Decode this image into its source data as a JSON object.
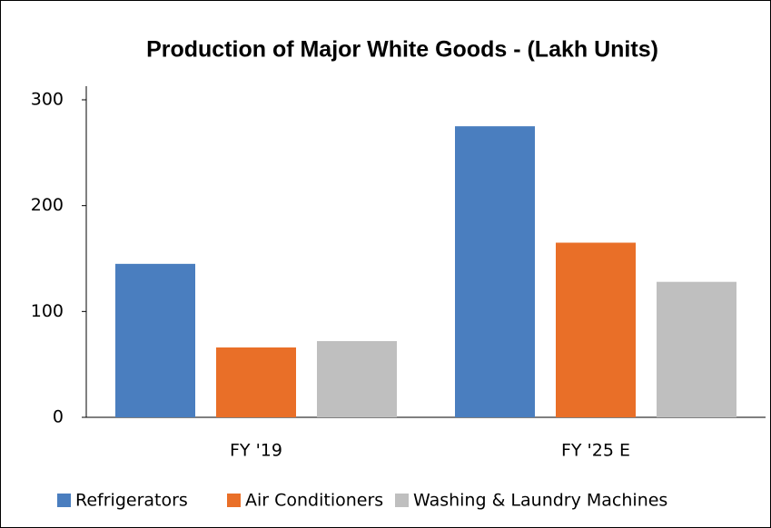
{
  "chart_data": {
    "type": "bar",
    "title": "Production of Major White Goods - (Lakh Units)",
    "categories": [
      "FY '19",
      "FY '25 E"
    ],
    "series": [
      {
        "name": "Refrigerators",
        "color": "#4a7ebf",
        "values": [
          145,
          275
        ]
      },
      {
        "name": "Air Conditioners",
        "color": "#e96f28",
        "values": [
          66,
          165
        ]
      },
      {
        "name": "Washing & Laundry Machines",
        "color": "#bfbfbf",
        "values": [
          72,
          128
        ]
      }
    ],
    "ylim": [
      0,
      300
    ],
    "yticks": [
      0,
      100,
      200,
      300
    ],
    "grid": false,
    "legend": "bottom"
  }
}
